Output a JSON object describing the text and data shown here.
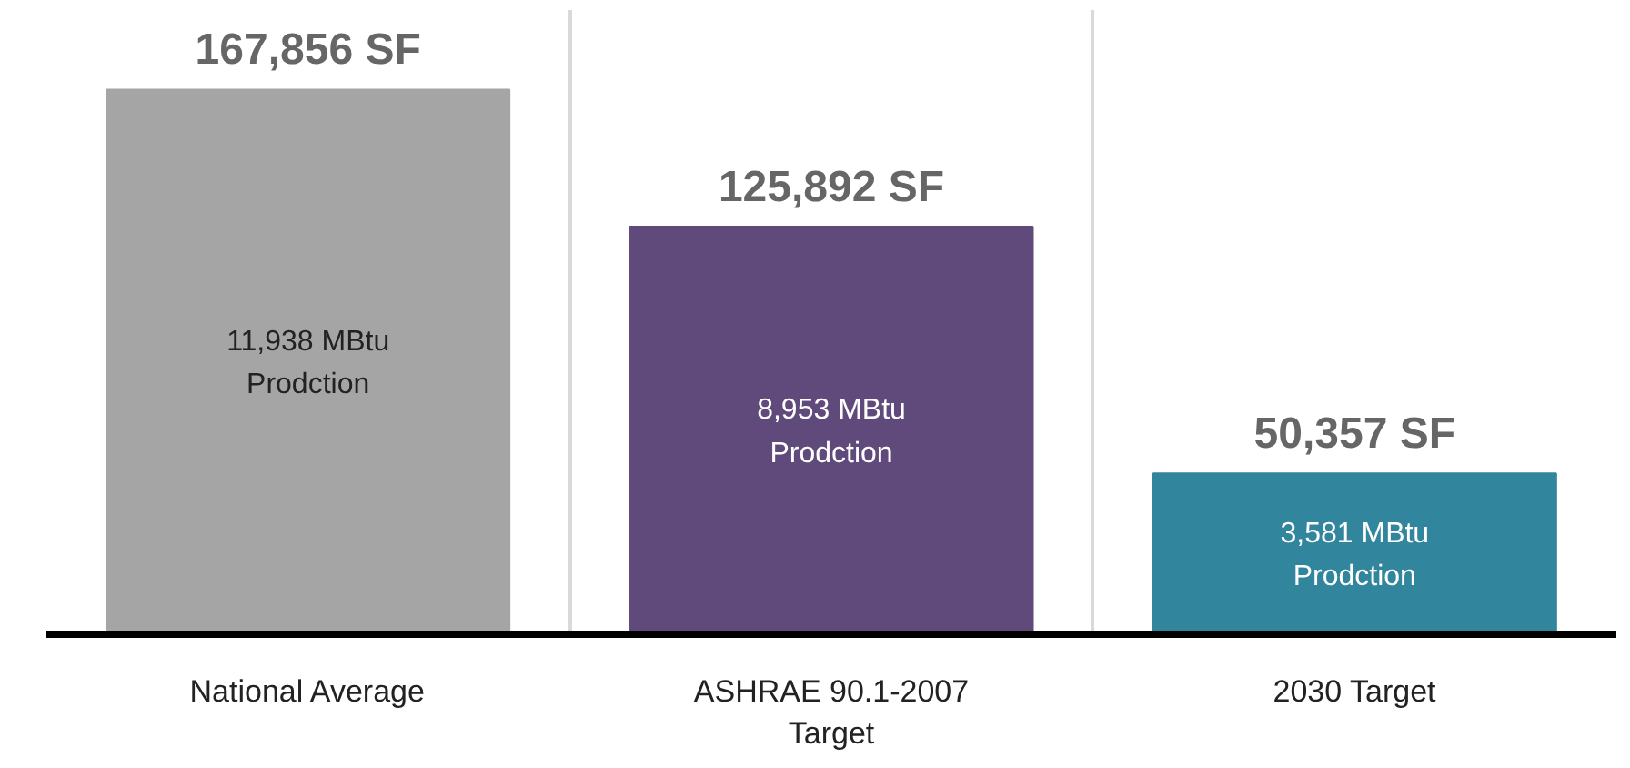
{
  "chart_data": {
    "type": "bar",
    "categories": [
      "National Average",
      "ASHRAE 90.1-2007\nTarget",
      "2030 Target"
    ],
    "values": [
      167856,
      125892,
      50357
    ],
    "colors": [
      "#a5a5a5",
      "#604a7b",
      "#31859c"
    ],
    "value_labels": [
      "167,856 SF",
      "125,892 SF",
      "50,357 SF"
    ],
    "annotations": [
      "11,938 MBtu\nProdction",
      "8,953 MBtu\nProdction",
      "3,581 MBtu\nProdction"
    ],
    "grid": "x"
  }
}
